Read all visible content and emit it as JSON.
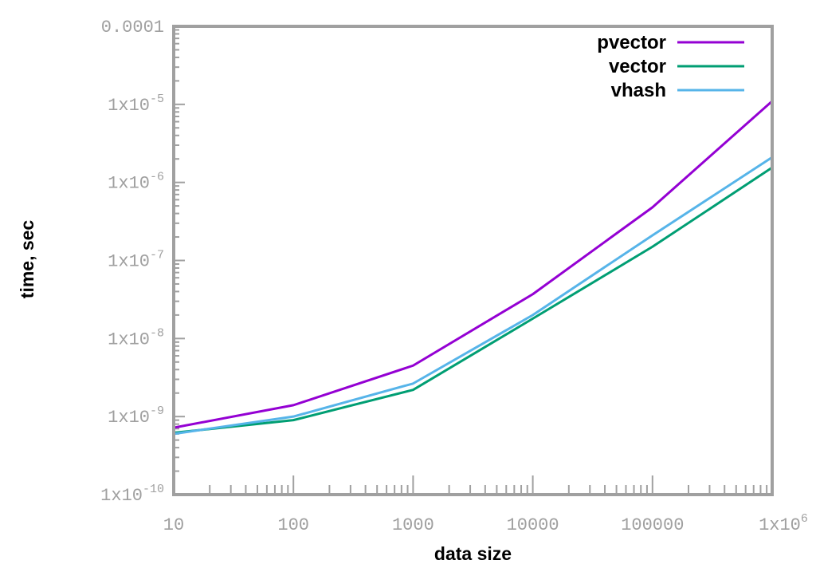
{
  "chart_data": {
    "type": "line",
    "xlabel": "data size",
    "ylabel": "time, sec",
    "x_scale": "log",
    "y_scale": "log",
    "xlim": [
      10,
      1000000
    ],
    "ylim": [
      1e-10,
      0.0001
    ],
    "grid": false,
    "legend_position": "top-right",
    "x_ticks": [
      {
        "value": 10,
        "label": "10",
        "exp": ""
      },
      {
        "value": 100,
        "label": "100",
        "exp": ""
      },
      {
        "value": 1000,
        "label": "1000",
        "exp": ""
      },
      {
        "value": 10000,
        "label": "10000",
        "exp": ""
      },
      {
        "value": 100000,
        "label": "100000",
        "exp": ""
      },
      {
        "value": 1000000,
        "label": "1x10",
        "exp": "6"
      }
    ],
    "y_ticks": [
      {
        "value": 1e-10,
        "label": "1x10",
        "exp": "-10"
      },
      {
        "value": 1e-09,
        "label": "1x10",
        "exp": "-9"
      },
      {
        "value": 1e-08,
        "label": "1x10",
        "exp": "-8"
      },
      {
        "value": 1e-07,
        "label": "1x10",
        "exp": "-7"
      },
      {
        "value": 1e-06,
        "label": "1x10",
        "exp": "-6"
      },
      {
        "value": 1e-05,
        "label": "1x10",
        "exp": "-5"
      },
      {
        "value": 0.0001,
        "label": "0.0001",
        "exp": ""
      }
    ],
    "x": [
      10,
      100,
      1000,
      10000,
      100000,
      1000000
    ],
    "series": [
      {
        "name": "pvector",
        "color": "#9400d3",
        "values": [
          7.2e-10,
          1.4e-09,
          4.5e-09,
          3.7e-08,
          4.8e-07,
          1.1e-05
        ]
      },
      {
        "name": "vector",
        "color": "#009e73",
        "values": [
          6.2e-10,
          9e-10,
          2.2e-09,
          1.8e-08,
          1.5e-07,
          1.55e-06
        ]
      },
      {
        "name": "vhash",
        "color": "#56b4e9",
        "values": [
          6e-10,
          1e-09,
          2.65e-09,
          2e-08,
          2.1e-07,
          2.1e-06
        ]
      }
    ]
  }
}
